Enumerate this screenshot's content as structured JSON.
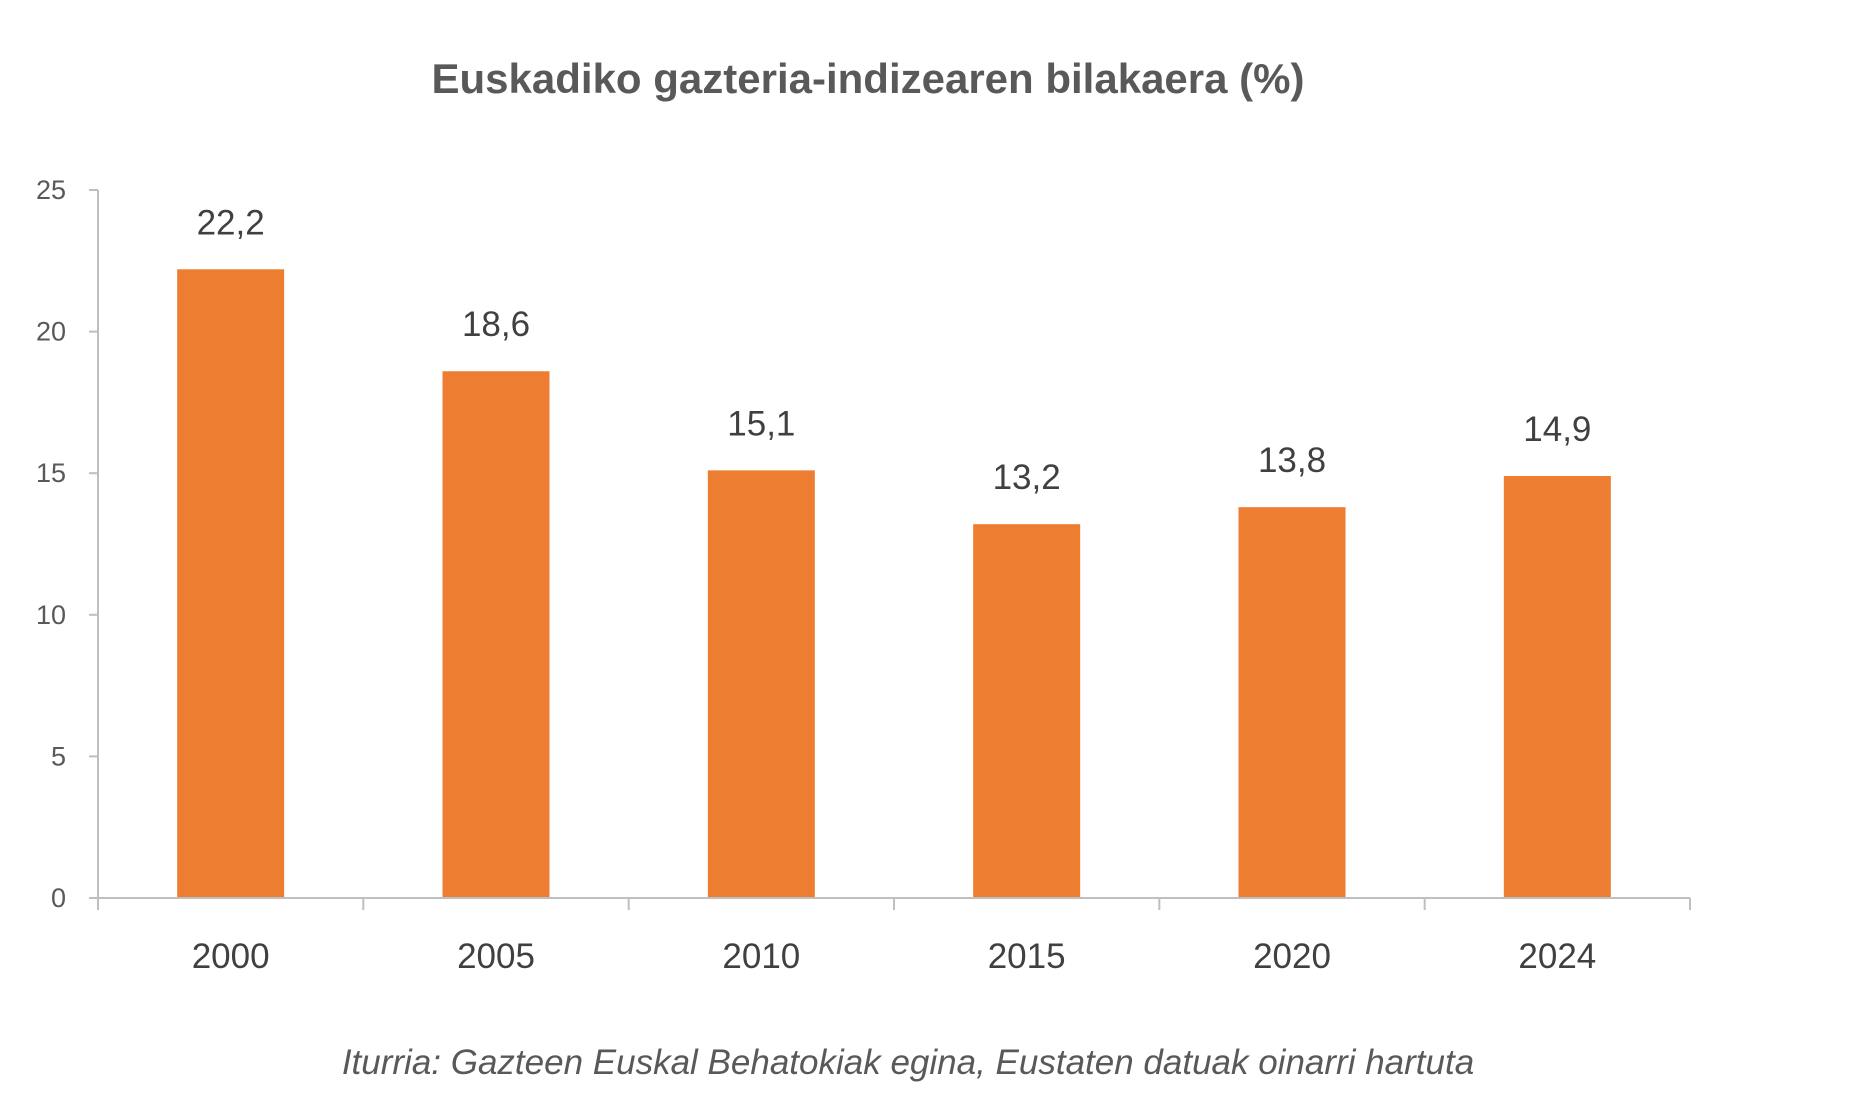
{
  "chart_data": {
    "type": "bar",
    "title": "Euskadiko gazteria-indizearen bilakaera (%)",
    "categories": [
      "2000",
      "2005",
      "2010",
      "2015",
      "2020",
      "2024"
    ],
    "values": [
      22.2,
      18.6,
      15.1,
      13.2,
      13.8,
      14.9
    ],
    "data_labels": [
      "22,2",
      "18,6",
      "15,1",
      "13,2",
      "13,8",
      "14,9"
    ],
    "yticks": [
      "0",
      "5",
      "10",
      "15",
      "20",
      "25"
    ],
    "ylim": [
      0,
      25
    ],
    "xlabel": "",
    "ylabel": "",
    "grid": false,
    "legend": "none",
    "bar_color": "#ED7D31",
    "source": "Iturria: Gazteen Euskal Behatokiak egina, Eustaten datuak oinarri hartuta"
  }
}
